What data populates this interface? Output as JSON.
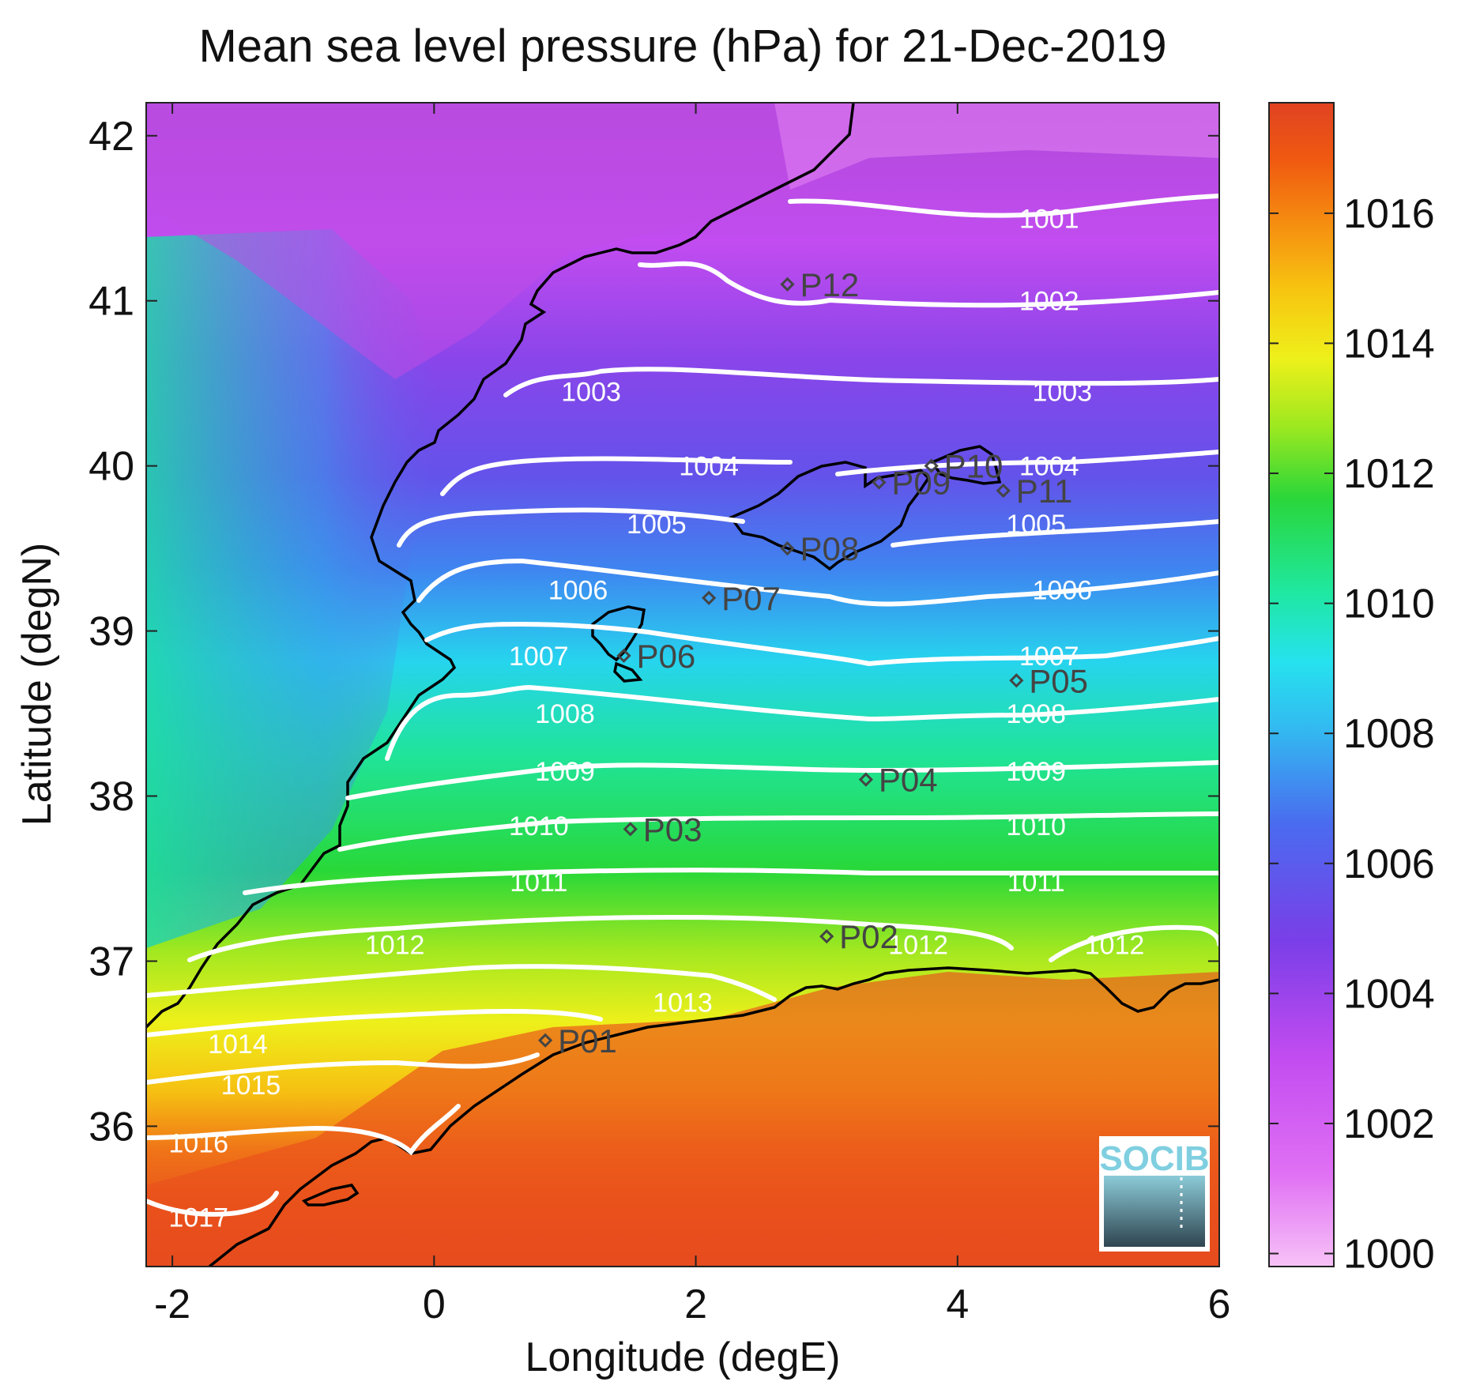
{
  "title": "Mean sea level pressure (hPa) for 21-Dec-2019",
  "xlabel": "Longitude (degE)",
  "ylabel": "Latitude (degN)",
  "xlim": [
    -2.2,
    6.0
  ],
  "ylim": [
    35.15,
    42.2
  ],
  "xticks": [
    "-2",
    "0",
    "2",
    "4",
    "6"
  ],
  "yticks": [
    "36",
    "37",
    "38",
    "39",
    "40",
    "41",
    "42"
  ],
  "colorbar": {
    "range": [
      999.8,
      1017.7
    ],
    "ticks": [
      "1000",
      "1002",
      "1004",
      "1006",
      "1008",
      "1010",
      "1012",
      "1014",
      "1016"
    ],
    "colors": [
      "#f7c2f7",
      "#d24cf0",
      "#7a3ee8",
      "#4a6bef",
      "#26d6f0",
      "#1fe8a0",
      "#2ad63a",
      "#d6f01a",
      "#f7c410",
      "#f05a10",
      "#e04222"
    ]
  },
  "contours": [
    {
      "label": "1001",
      "lat": 41.5
    },
    {
      "label": "1002",
      "lat": 41.0
    },
    {
      "label": "1003",
      "lat": 40.45
    },
    {
      "label": "1004",
      "lat": 40.0
    },
    {
      "label": "1005",
      "lat": 39.65
    },
    {
      "label": "1006",
      "lat": 39.25
    },
    {
      "label": "1007",
      "lat": 38.85
    },
    {
      "label": "1008",
      "lat": 38.5
    },
    {
      "label": "1009",
      "lat": 38.15
    },
    {
      "label": "1010",
      "lat": 37.82
    },
    {
      "label": "1011",
      "lat": 37.48
    },
    {
      "label": "1012",
      "lat": 37.1
    },
    {
      "label": "1013",
      "lat": 36.75
    },
    {
      "label": "1014",
      "lat": 36.5
    },
    {
      "label": "1015",
      "lat": 36.25
    },
    {
      "label": "1016",
      "lat": 35.9
    },
    {
      "label": "1017",
      "lat": 35.45
    }
  ],
  "points": [
    {
      "name": "P01",
      "lon": 0.85,
      "lat": 36.52
    },
    {
      "name": "P02",
      "lon": 3.0,
      "lat": 37.15
    },
    {
      "name": "P03",
      "lon": 1.5,
      "lat": 37.8
    },
    {
      "name": "P04",
      "lon": 3.3,
      "lat": 38.1
    },
    {
      "name": "P05",
      "lon": 4.45,
      "lat": 38.7
    },
    {
      "name": "P06",
      "lon": 1.45,
      "lat": 38.85
    },
    {
      "name": "P07",
      "lon": 2.1,
      "lat": 39.2
    },
    {
      "name": "P08",
      "lon": 2.7,
      "lat": 39.5
    },
    {
      "name": "P09",
      "lon": 3.4,
      "lat": 39.9
    },
    {
      "name": "P10",
      "lon": 3.8,
      "lat": 40.0
    },
    {
      "name": "P11",
      "lon": 4.35,
      "lat": 39.85
    },
    {
      "name": "P12",
      "lon": 2.7,
      "lat": 41.1
    }
  ],
  "logo": "SOCIB"
}
